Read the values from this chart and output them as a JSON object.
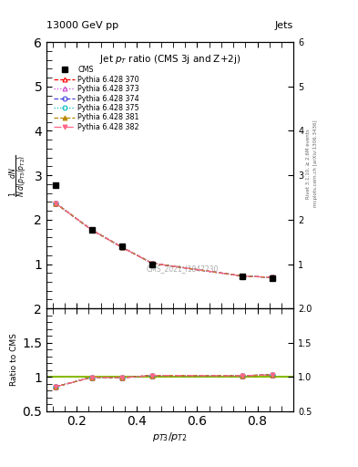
{
  "title_left": "13000 GeV pp",
  "title_right": "Jets",
  "plot_title": "Jet $p_T$ ratio (CMS 3j and Z+2j)",
  "xlabel": "$p_{T3}/p_{T2}$",
  "ylabel_main": "$\\frac{1}{N}\\frac{dN}{d(p_{T3}/p_{T2})}$",
  "ylabel_ratio": "Ratio to CMS",
  "watermark": "CMS_2021_I1847230",
  "right_label_top": "Rivet 3.1.10, ≥ 2.6M events",
  "right_label_bot": "mcplots.cern.ch [arXiv:1306.3436]",
  "cms_x": [
    0.13,
    0.25,
    0.35,
    0.45,
    0.75,
    0.85
  ],
  "cms_y": [
    2.78,
    1.78,
    1.4,
    1.0,
    0.72,
    0.68
  ],
  "cms_color": "#000000",
  "cms_marker": "s",
  "cms_markersize": 5,
  "pythia_x": [
    0.13,
    0.25,
    0.35,
    0.45,
    0.75,
    0.85
  ],
  "series": [
    {
      "label": "Pythia 6.428 370",
      "y": [
        2.37,
        1.77,
        1.38,
        1.02,
        0.73,
        0.7
      ],
      "ratio": [
        0.853,
        0.994,
        0.986,
        1.02,
        1.015,
        1.03
      ],
      "color": "#ff0000",
      "linestyle": "--",
      "marker": "^",
      "markerfacecolor": "none"
    },
    {
      "label": "Pythia 6.428 373",
      "y": [
        2.37,
        1.77,
        1.38,
        1.02,
        0.73,
        0.7
      ],
      "ratio": [
        0.853,
        0.994,
        0.986,
        1.02,
        1.015,
        1.03
      ],
      "color": "#cc44cc",
      "linestyle": ":",
      "marker": "^",
      "markerfacecolor": "none"
    },
    {
      "label": "Pythia 6.428 374",
      "y": [
        2.37,
        1.77,
        1.38,
        1.02,
        0.73,
        0.7
      ],
      "ratio": [
        0.853,
        0.994,
        0.986,
        1.02,
        1.015,
        1.03
      ],
      "color": "#4444dd",
      "linestyle": "--",
      "marker": "o",
      "markerfacecolor": "none"
    },
    {
      "label": "Pythia 6.428 375",
      "y": [
        2.37,
        1.77,
        1.38,
        1.02,
        0.73,
        0.7
      ],
      "ratio": [
        0.853,
        0.994,
        0.986,
        1.02,
        1.015,
        1.03
      ],
      "color": "#00bbbb",
      "linestyle": ":",
      "marker": "o",
      "markerfacecolor": "none"
    },
    {
      "label": "Pythia 6.428 381",
      "y": [
        2.37,
        1.77,
        1.38,
        1.02,
        0.73,
        0.7
      ],
      "ratio": [
        0.853,
        0.994,
        0.986,
        1.02,
        1.015,
        1.03
      ],
      "color": "#bb8800",
      "linestyle": "--",
      "marker": "^",
      "markerfacecolor": "#bb8800"
    },
    {
      "label": "Pythia 6.428 382",
      "y": [
        2.37,
        1.77,
        1.38,
        1.02,
        0.73,
        0.7
      ],
      "ratio": [
        0.853,
        0.994,
        0.986,
        1.02,
        1.015,
        1.03
      ],
      "color": "#ff6688",
      "linestyle": "-.",
      "marker": "v",
      "markerfacecolor": "#ff6688"
    }
  ],
  "xlim": [
    0.1,
    0.92
  ],
  "ylim_main": [
    0.0,
    6.0
  ],
  "ylim_ratio": [
    0.5,
    2.0
  ],
  "yticks_main": [
    1,
    2,
    3,
    4,
    5,
    6
  ],
  "yticks_ratio": [
    0.5,
    1.0,
    1.5,
    2.0
  ],
  "xticks": [
    0.2,
    0.4,
    0.6,
    0.8
  ],
  "ratio_ref_color": "#88bb00",
  "background_color": "#ffffff"
}
